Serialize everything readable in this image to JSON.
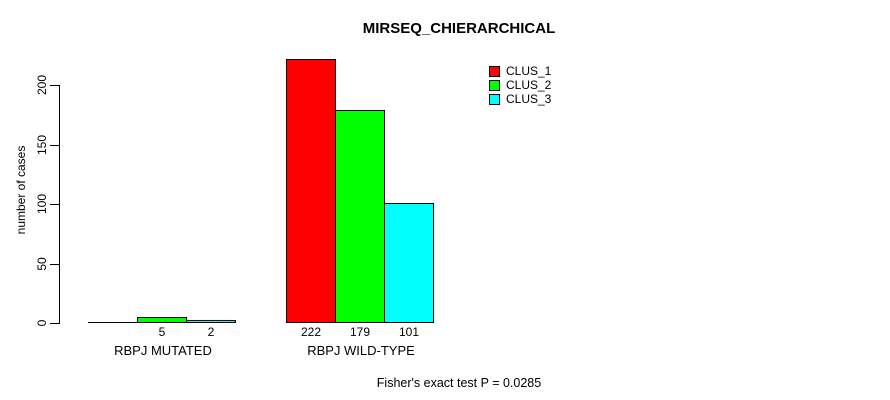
{
  "chart_data": {
    "type": "bar",
    "title": "MIRSEQ_CHIERARCHICAL",
    "ylabel": "number of cases",
    "xlabel": "",
    "categories": [
      "RBPJ MUTATED",
      "RBPJ WILD-TYPE"
    ],
    "series": [
      {
        "name": "CLUS_1",
        "color": "#ff0000",
        "values": [
          0,
          222
        ]
      },
      {
        "name": "CLUS_2",
        "color": "#00ff00",
        "values": [
          5,
          179
        ]
      },
      {
        "name": "CLUS_3",
        "color": "#00ffff",
        "values": [
          2,
          101
        ]
      }
    ],
    "bar_value_labels": [
      [
        "",
        "5",
        "2"
      ],
      [
        "222",
        "179",
        "101"
      ]
    ],
    "yticks": [
      0,
      50,
      100,
      150,
      200
    ],
    "ylim": [
      0,
      200
    ],
    "grid": false,
    "legend": {
      "position": "top-right",
      "entries": [
        {
          "label": "CLUS_1",
          "color": "#ff0000"
        },
        {
          "label": "CLUS_2",
          "color": "#00ff00"
        },
        {
          "label": "CLUS_3",
          "color": "#00ffff"
        }
      ]
    },
    "annotation": "Fisher's exact test P = 0.0285"
  }
}
